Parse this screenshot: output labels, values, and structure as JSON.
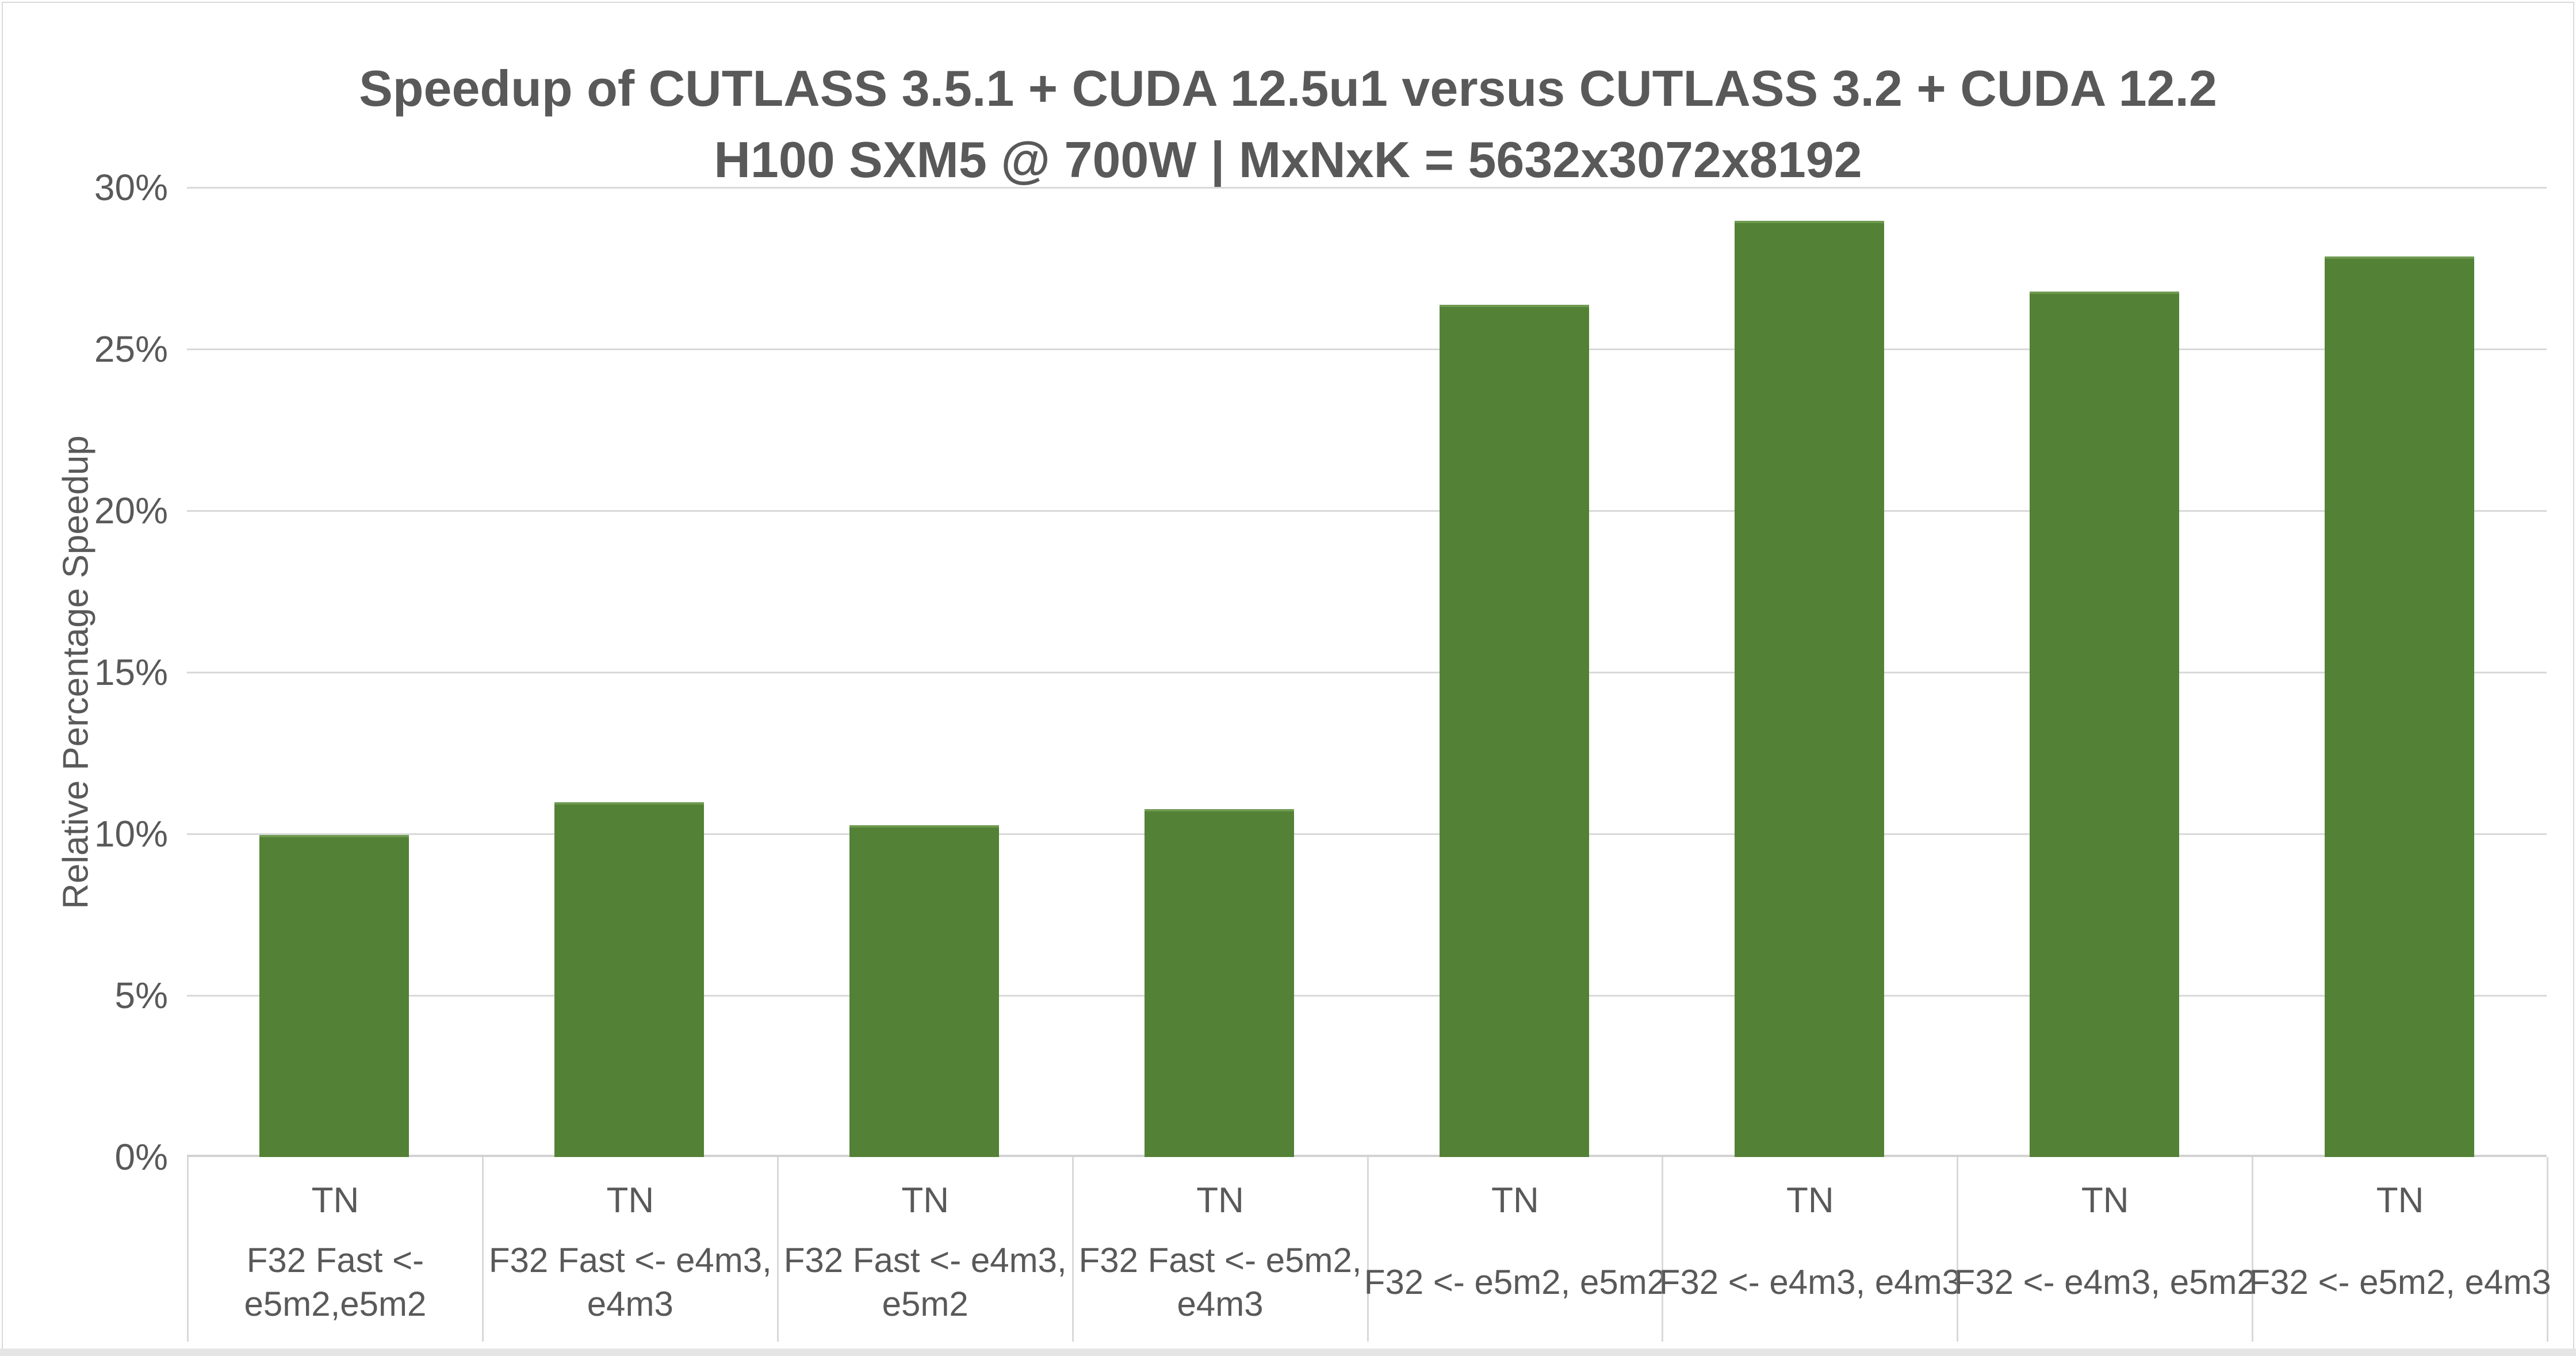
{
  "chart_data": {
    "type": "bar",
    "title": "Speedup of CUTLASS 3.5.1 + CUDA 12.5u1 versus CUTLASS 3.2 + CUDA 12.2",
    "subtitle": "H100 SXM5 @ 700W | MxNxK = 5632x3072x8192",
    "xlabel": "",
    "ylabel": "Relative Percentage Speedup",
    "ylim": [
      0,
      30
    ],
    "grid": true,
    "legend": "none",
    "yticks": [
      0,
      5,
      10,
      15,
      20,
      25,
      30
    ],
    "ytick_labels": [
      "0%",
      "5%",
      "10%",
      "15%",
      "20%",
      "25%",
      "30%"
    ],
    "category_top_labels": [
      "TN",
      "TN",
      "TN",
      "TN",
      "TN",
      "TN",
      "TN",
      "TN"
    ],
    "categories": [
      "F32 Fast <-\ne5m2,e5m2",
      "F32 Fast <- e4m3,\ne4m3",
      "F32 Fast <- e4m3,\ne5m2",
      "F32 Fast <- e5m2,\ne4m3",
      "F32 <- e5m2, e5m2",
      "F32 <- e4m3, e4m3",
      "F32 <- e4m3, e5m2",
      "F32 <- e5m2, e4m3"
    ],
    "values": [
      9.9,
      10.9,
      10.2,
      10.7,
      26.3,
      28.9,
      26.7,
      27.8
    ],
    "colors": {
      "bar": "#538135",
      "bar_top_edge": "#6E9B50",
      "grid": "#D9D9D9",
      "axis_line": "#D2D2D2",
      "text": "#595959",
      "chart_border": "#D9D9D9",
      "bottom_strip": "#E5E5E5",
      "background": "#FFFFFF"
    }
  }
}
